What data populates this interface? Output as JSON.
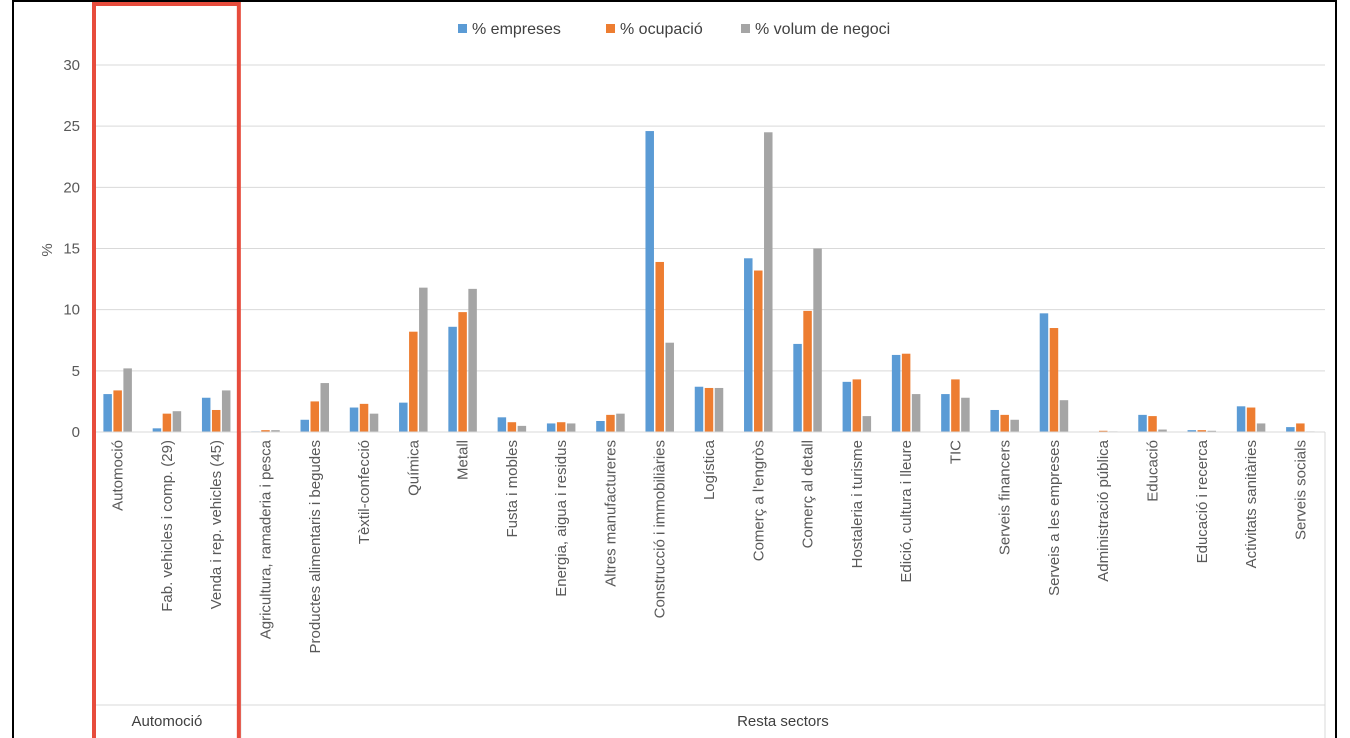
{
  "chart_data": {
    "type": "bar",
    "ylabel": "%",
    "ylim": [
      0,
      30
    ],
    "yticks": [
      0,
      5,
      10,
      15,
      20,
      25,
      30
    ],
    "grid": true,
    "legend_position": "top",
    "colors": [
      "#5b9bd5",
      "#ed7d31",
      "#a5a5a5"
    ],
    "highlight_color": "#e74c3c",
    "categories": [
      "Automoció",
      "Fab. vehicles i comp. (29)",
      "Venda i rep. vehicles (45)",
      "Agricultura, ramaderia i pesca",
      "Productes alimentaris i begudes",
      "Tèxtil-confecció",
      "Química",
      "Metall",
      "Fusta i mobles",
      "Energia, aigua i residus",
      "Altres manufactureres",
      "Construcció i immobiliàries",
      "Logística",
      "Comerç a l'engròs",
      "Comerç al detall",
      "Hostaleria i turisme",
      "Edició, cultura i lleure",
      "TIC",
      "Serveis financers",
      "Serveis a les empreses",
      "Administració pública",
      "Educació",
      "Educació i recerca",
      "Activitats sanitàries",
      "Serveis socials"
    ],
    "groups": [
      {
        "label": "Automoció",
        "start": 0,
        "end": 2
      },
      {
        "label": "Resta sectors",
        "start": 3,
        "end": 24
      }
    ],
    "series": [
      {
        "name": "% empreses",
        "values": [
          3.1,
          0.3,
          2.8,
          0.05,
          1.0,
          2.0,
          2.4,
          8.6,
          1.2,
          0.7,
          0.9,
          24.6,
          3.7,
          14.2,
          7.2,
          4.1,
          6.3,
          3.1,
          1.8,
          9.7,
          0.0,
          1.4,
          0.15,
          2.1,
          0.4
        ]
      },
      {
        "name": "% ocupació",
        "values": [
          3.4,
          1.5,
          1.8,
          0.15,
          2.5,
          2.3,
          8.2,
          9.8,
          0.8,
          0.8,
          1.4,
          13.9,
          3.6,
          13.2,
          9.9,
          4.3,
          6.4,
          4.3,
          1.4,
          8.5,
          0.1,
          1.3,
          0.15,
          2.0,
          0.7
        ]
      },
      {
        "name": "% volum de negoci",
        "values": [
          5.2,
          1.7,
          3.4,
          0.15,
          4.0,
          1.5,
          11.8,
          11.7,
          0.5,
          0.7,
          1.5,
          7.3,
          3.6,
          24.5,
          15.0,
          1.3,
          3.1,
          2.8,
          1.0,
          2.6,
          0.05,
          0.2,
          0.1,
          0.7,
          0.05
        ]
      }
    ]
  }
}
